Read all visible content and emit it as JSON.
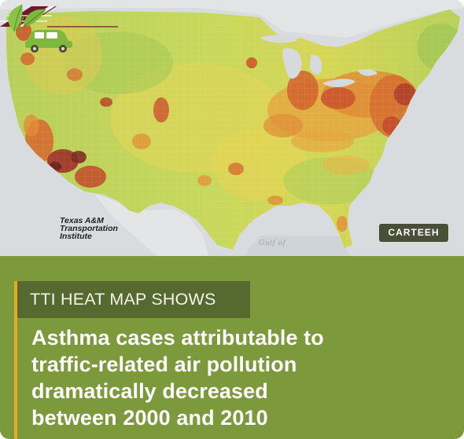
{
  "map": {
    "water_label": "Gulf of",
    "colors": {
      "background": "#d9dcdf",
      "low": "#a6c957",
      "low_mid": "#cfdc5d",
      "mid": "#ecd253",
      "high": "#e39436",
      "very_high": "#c9512b",
      "extreme": "#7e2b23"
    }
  },
  "logos": {
    "tti": {
      "line1": "Texas A&M",
      "line2": "Transportation",
      "line3": "Institute",
      "mark_color": "#6b1b2c"
    },
    "carteeh": {
      "label": "CARTEEH",
      "icon": "leaf-car-icon",
      "badge_color": "#4a4f37",
      "icon_color": "#7fb83d"
    }
  },
  "panel": {
    "kicker": "TTI HEAT MAP SHOWS",
    "headline_lines": [
      "Asthma cases attributable to",
      "traffic-related air pollution",
      "dramatically decreased",
      "between 2000 and 2010"
    ],
    "accent_color": "#e8a82a",
    "background_color": "#7c993c"
  }
}
